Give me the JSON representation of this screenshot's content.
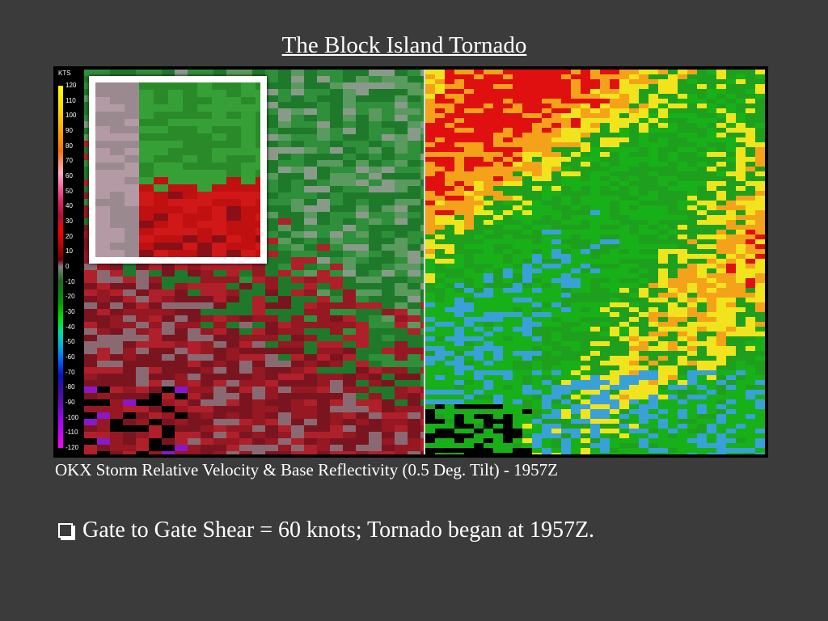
{
  "slide": {
    "title": "The Block Island Tornado",
    "caption": "OKX Storm Relative Velocity & Base Reflectivity (0.5 Deg. Tilt) - 1957Z",
    "bullet": "Gate to Gate Shear = 60 knots; Tornado began at 1957Z."
  },
  "legend": {
    "unit": "KTS",
    "ticks": [
      "120",
      "110",
      "100",
      "90",
      "80",
      "70",
      "60",
      "50",
      "40",
      "30",
      "20",
      "10",
      "0",
      "-10",
      "-20",
      "-30",
      "-40",
      "-50",
      "-60",
      "-70",
      "-80",
      "-90",
      "-100",
      "-110",
      "-120"
    ]
  },
  "colors": {
    "background": "#3b3b3b",
    "velocity_inbound": "#1e8a1e",
    "velocity_outbound": "#a0101a",
    "reflectivity_green": "#1ea01e",
    "reflectivity_yellow": "#f2e41c",
    "reflectivity_orange": "#f5a21b",
    "reflectivity_red": "#e01010",
    "reflectivity_blue": "#3aa0d8"
  }
}
